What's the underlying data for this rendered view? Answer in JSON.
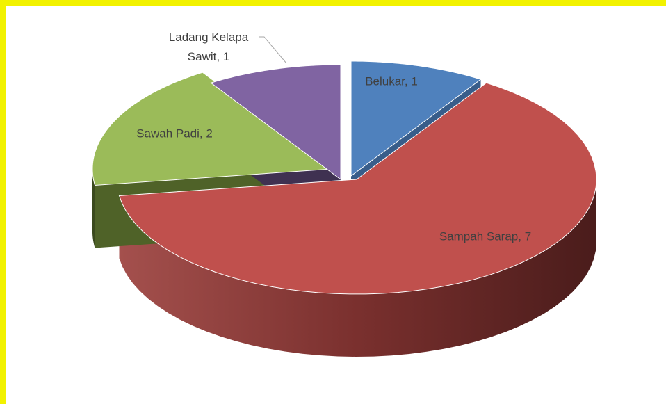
{
  "chart_data": {
    "type": "pie3d",
    "values": [
      1,
      7,
      2,
      1
    ],
    "value_labels": [
      "Belukar, 1",
      "Sampah Sarap, 7",
      "Sawah Padi, 2",
      "Ladang Kelapa Sawit, 1"
    ],
    "colors": [
      "#4f81bd",
      "#c0504d",
      "#9bbb59",
      "#8064a2"
    ]
  }
}
